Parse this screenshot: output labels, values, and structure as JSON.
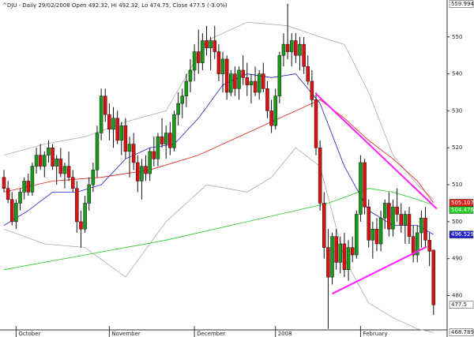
{
  "chart_data": {
    "type": "candlestick",
    "title": "^DJU - Daily 29/02/2008 Open 492.32, Hi 492.32, Lo 474.75, Close 477.5 (-3.0%)",
    "categories": [
      null,
      null,
      null,
      "October",
      null,
      null,
      null,
      null,
      null,
      null,
      null,
      null,
      null,
      null,
      null,
      null,
      null,
      null,
      null,
      null,
      null,
      null,
      null,
      null,
      null,
      null,
      "November",
      null,
      null,
      null,
      null,
      null,
      null,
      null,
      null,
      null,
      null,
      null,
      null,
      null,
      null,
      null,
      null,
      null,
      null,
      null,
      null,
      "December",
      null,
      null,
      null,
      null,
      null,
      null,
      null,
      null,
      null,
      null,
      null,
      null,
      null,
      null,
      null,
      null,
      null,
      null,
      null,
      "2008",
      null,
      null,
      null,
      null,
      null,
      null,
      null,
      null,
      null,
      null,
      null,
      null,
      null,
      null,
      null,
      null,
      null,
      null,
      null,
      null,
      "February",
      null,
      null,
      null,
      null,
      null,
      null,
      null,
      null,
      null,
      null,
      null,
      null,
      null,
      null,
      null,
      null,
      null,
      null
    ],
    "open": [
      512,
      509,
      506,
      500,
      505,
      508,
      511,
      508,
      515,
      518,
      515,
      518,
      520,
      515,
      517,
      513,
      515,
      512,
      509,
      500,
      498,
      505,
      510,
      514,
      524,
      534,
      529,
      525,
      528,
      522,
      526,
      519,
      521,
      516,
      511,
      515,
      513,
      519,
      517,
      523,
      521,
      524,
      520,
      529,
      532,
      534,
      538,
      541,
      546,
      543,
      549,
      547,
      549,
      546,
      540,
      544,
      535,
      540,
      536,
      541,
      539,
      537,
      538,
      535,
      540,
      536,
      530,
      526,
      534,
      545,
      548,
      546,
      549,
      545,
      548,
      542,
      538,
      533,
      520,
      505,
      493,
      485,
      496,
      489,
      494,
      487,
      493,
      491,
      502,
      516,
      504,
      495,
      498,
      494,
      501,
      505,
      498,
      504,
      502,
      499,
      502,
      496,
      491,
      497,
      501,
      495,
      492.32
    ],
    "high": [
      514,
      511,
      508,
      506,
      509,
      512,
      513,
      516,
      520,
      521,
      519,
      522,
      521,
      518,
      520,
      516,
      519,
      514,
      511,
      503,
      507,
      512,
      516,
      526,
      536,
      536,
      532,
      531,
      530,
      527,
      528,
      523,
      524,
      518,
      517,
      518,
      520,
      523,
      524,
      528,
      526,
      527,
      530,
      535,
      536,
      540,
      544,
      548,
      552,
      551,
      553,
      550,
      553,
      548,
      546,
      545,
      541,
      542,
      542,
      545,
      543,
      540,
      542,
      541,
      543,
      538,
      533,
      536,
      546,
      551,
      559,
      551,
      551,
      550,
      550,
      545,
      541,
      535,
      522,
      508,
      498,
      497,
      498,
      496,
      497,
      495,
      496,
      503,
      518,
      517,
      506,
      500,
      501,
      503,
      506,
      508,
      506,
      509,
      505,
      503,
      504,
      499,
      499,
      503,
      504,
      497,
      492.32
    ],
    "low": [
      508,
      505,
      499,
      498,
      503,
      506,
      507,
      507,
      513,
      514,
      512,
      516,
      514,
      510,
      512,
      509,
      511,
      508,
      497,
      493,
      497,
      503,
      508,
      512,
      522,
      527,
      522,
      520,
      521,
      518,
      517,
      512,
      514,
      508,
      506,
      511,
      511,
      515,
      515,
      520,
      517,
      518,
      519,
      526,
      528,
      531,
      535,
      538,
      540,
      541,
      545,
      541,
      544,
      538,
      535,
      533,
      534,
      534,
      533,
      537,
      534,
      532,
      534,
      533,
      535,
      528,
      524,
      525,
      532,
      542,
      544,
      542,
      543,
      541,
      540,
      537,
      531,
      518,
      503,
      490,
      471,
      483,
      487,
      486,
      485,
      484,
      489,
      490,
      500,
      502,
      493,
      490,
      492,
      492,
      498,
      496,
      496,
      500,
      497,
      494,
      494,
      489,
      489,
      493,
      493,
      488,
      474.75
    ],
    "close": [
      509,
      506,
      500,
      505,
      508,
      511,
      508,
      515,
      518,
      515,
      518,
      520,
      515,
      517,
      513,
      515,
      512,
      509,
      500,
      498,
      505,
      510,
      514,
      524,
      534,
      529,
      525,
      528,
      522,
      526,
      519,
      521,
      516,
      511,
      515,
      513,
      519,
      517,
      523,
      521,
      524,
      520,
      529,
      532,
      534,
      538,
      541,
      546,
      543,
      549,
      547,
      549,
      546,
      540,
      544,
      535,
      540,
      536,
      541,
      539,
      537,
      538,
      535,
      540,
      536,
      530,
      526,
      534,
      545,
      548,
      546,
      549,
      545,
      548,
      542,
      538,
      533,
      520,
      505,
      493,
      485,
      496,
      489,
      494,
      487,
      493,
      491,
      502,
      516,
      504,
      495,
      498,
      494,
      501,
      505,
      498,
      504,
      502,
      499,
      502,
      496,
      491,
      497,
      501,
      495,
      492,
      477.5
    ],
    "up_color": "#1a9a1a",
    "down_color": "#e01010",
    "ylim": [
      468.789,
      559.994
    ],
    "yticks": [
      480,
      490,
      500,
      510,
      520,
      530,
      540,
      550
    ],
    "overlays": [
      {
        "color": "#aaaaaa",
        "x": [
          0,
          10,
          20,
          30,
          40,
          50,
          60,
          70,
          78,
          84,
          90,
          96,
          102,
          106
        ],
        "values": [
          518,
          521,
          523,
          527,
          530,
          549,
          554,
          553,
          550,
          548,
          535,
          518,
          510,
          506
        ]
      },
      {
        "color": "#aaaaaa",
        "x": [
          0,
          10,
          20,
          30,
          40,
          50,
          60,
          66,
          72,
          78,
          84,
          90,
          96,
          102,
          106
        ],
        "values": [
          498,
          494,
          493,
          485,
          500,
          510,
          508,
          512,
          520,
          515,
          490,
          478,
          474,
          471,
          470
        ]
      },
      {
        "color": "#22cc22",
        "x": [
          0,
          20,
          40,
          60,
          80,
          90,
          96,
          102,
          106
        ],
        "values": [
          487,
          491,
          495,
          500,
          505,
          509,
          508,
          506,
          504.476
        ],
        "label": true
      },
      {
        "color": "#e0201a",
        "x": [
          0,
          12,
          24,
          36,
          48,
          60,
          72,
          78,
          84,
          90,
          96,
          102,
          106
        ],
        "values": [
          508,
          511,
          512,
          514,
          518,
          524,
          530,
          533,
          528,
          522,
          517,
          511,
          505.107
        ],
        "label": true
      },
      {
        "color": "#2222cc",
        "x": [
          0,
          6,
          12,
          18,
          24,
          30,
          36,
          42,
          48,
          54,
          60,
          66,
          72,
          78,
          84,
          90,
          96,
          102,
          106
        ],
        "values": [
          499,
          503,
          508,
          508,
          510,
          517,
          520,
          521,
          528,
          537,
          540,
          539,
          540,
          532,
          515,
          503,
          499,
          499,
          496.529
        ],
        "label": true
      }
    ],
    "trendlines": [
      {
        "color": "#ff22ff",
        "x": [
          77,
          106.8
        ],
        "values": [
          534.6,
          503.5
        ]
      },
      {
        "color": "#ff22ff",
        "x": [
          81,
          104.3
        ],
        "values": [
          480.5,
          493.2
        ]
      }
    ]
  }
}
